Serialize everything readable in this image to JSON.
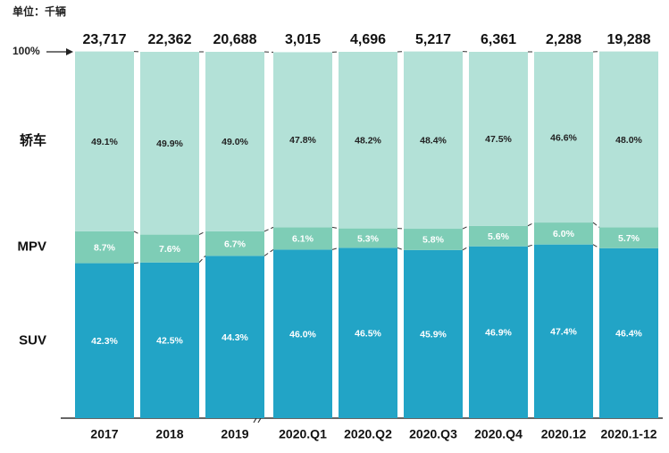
{
  "chart_data": {
    "type": "stacked_bar_percent",
    "subtitle": "单位：千辆",
    "categories": [
      "2017",
      "2018",
      "2019",
      "2020.Q1",
      "2020.Q2",
      "2020.Q3",
      "2020.Q4",
      "2020.12",
      "2020.1-12"
    ],
    "totals": {
      "values": [
        23717,
        22362,
        20688,
        3015,
        4696,
        5217,
        6361,
        2288,
        19288
      ],
      "value_labels": [
        "23,717",
        "22,362",
        "20,688",
        "3,015",
        "4,696",
        "5,217",
        "6,361",
        "2,288",
        "19,288"
      ]
    },
    "series": [
      {
        "name": "SUV",
        "color": "#22a4c6",
        "values": [
          42.3,
          42.5,
          44.3,
          46.0,
          46.5,
          45.9,
          46.9,
          47.4,
          46.4
        ],
        "value_labels": [
          "42.3%",
          "42.5%",
          "44.3%",
          "46.0%",
          "46.5%",
          "45.9%",
          "46.9%",
          "47.4%",
          "46.4%"
        ]
      },
      {
        "name": "MPV",
        "color": "#7ecdb6",
        "values": [
          8.7,
          7.6,
          6.7,
          6.1,
          5.3,
          5.8,
          5.6,
          6.0,
          5.7
        ],
        "value_labels": [
          "8.7%",
          "7.6%",
          "6.7%",
          "6.1%",
          "5.3%",
          "5.8%",
          "5.6%",
          "6.0%",
          "5.7%"
        ]
      },
      {
        "name": "轿车",
        "color": "#b3e1d7",
        "values": [
          49.1,
          49.9,
          49.0,
          47.8,
          48.2,
          48.4,
          47.5,
          46.6,
          48.0
        ],
        "value_labels": [
          "49.1%",
          "49.9%",
          "49.0%",
          "47.8%",
          "48.2%",
          "48.4%",
          "47.5%",
          "46.6%",
          "48.0%"
        ]
      }
    ],
    "ylim": [
      0,
      100
    ],
    "yticks": [
      {
        "value": 100,
        "label": "100%"
      }
    ]
  }
}
